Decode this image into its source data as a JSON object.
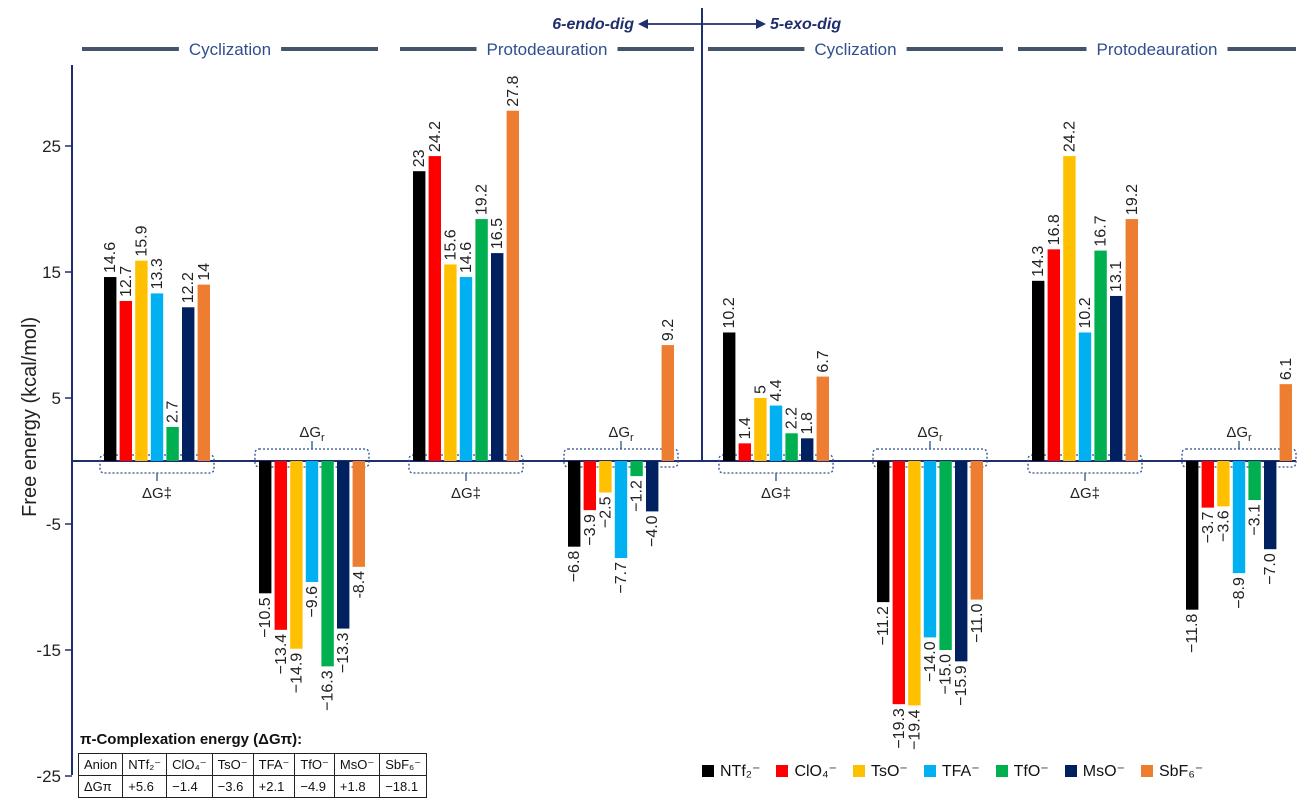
{
  "chart_data": {
    "type": "bar",
    "ylabel": "Free energy (kcal/mol)",
    "ylim": [
      -25,
      32
    ],
    "yticks": [
      25,
      15,
      5,
      -5,
      -15,
      -25
    ],
    "grid": false,
    "legend_position": "bottom-right",
    "series": [
      {
        "name": "NTf₂⁻",
        "color": "#000000"
      },
      {
        "name": "ClO₄⁻",
        "color": "#ff0000"
      },
      {
        "name": "TsO⁻",
        "color": "#ffc000"
      },
      {
        "name": "TFA⁻",
        "color": "#00b0f0"
      },
      {
        "name": "TfO⁻",
        "color": "#00b050"
      },
      {
        "name": "MsO⁻",
        "color": "#002060"
      },
      {
        "name": "SbF₆⁻",
        "color": "#ed7d31"
      }
    ],
    "groups": [
      {
        "bracket_label": "ΔG‡",
        "values": [
          14.6,
          12.7,
          15.9,
          13.3,
          2.7,
          12.2,
          14
        ],
        "labels": [
          "14.6",
          "12.7",
          "15.9",
          "13.3",
          "2.7",
          "12.2",
          "14"
        ]
      },
      {
        "bracket_label": "ΔGr",
        "values": [
          -10.5,
          -13.4,
          -14.9,
          -9.6,
          -16.3,
          -13.3,
          -8.4
        ],
        "labels": [
          "−10.5",
          "−13.4",
          "−14.9",
          "−9.6",
          "−16.3",
          "−13.3",
          "-8.4"
        ]
      },
      {
        "bracket_label": "ΔG‡",
        "values": [
          23,
          24.2,
          15.6,
          14.6,
          19.2,
          16.5,
          27.8
        ],
        "labels": [
          "23",
          "24.2",
          "15.6",
          "14.6",
          "19.2",
          "16.5",
          "27.8"
        ]
      },
      {
        "bracket_label": "ΔGr",
        "values": [
          -6.8,
          -3.9,
          -2.5,
          -7.7,
          -1.2,
          -4.0,
          9.2
        ],
        "labels": [
          "−6.8",
          "−3.9",
          "−2.5",
          "−7.7",
          "−1.2",
          "−4.0",
          "9.2"
        ]
      },
      {
        "bracket_label": "ΔG‡",
        "values": [
          10.2,
          1.4,
          5,
          4.4,
          2.2,
          1.8,
          6.7
        ],
        "labels": [
          "10.2",
          "1.4",
          "5",
          "4.4",
          "2.2",
          "1.8",
          "6.7"
        ]
      },
      {
        "bracket_label": "ΔGr",
        "values": [
          -11.2,
          -19.3,
          -19.4,
          -14.0,
          -15.0,
          -15.9,
          -11.0
        ],
        "labels": [
          "−11.2",
          "−19.3",
          "−19.4",
          "−14.0",
          "−15.0",
          "−15.9",
          "−11.0"
        ]
      },
      {
        "bracket_label": "ΔG‡",
        "values": [
          14.3,
          16.8,
          24.2,
          10.2,
          16.7,
          13.1,
          19.2
        ],
        "labels": [
          "14.3",
          "16.8",
          "24.2",
          "10.2",
          "16.7",
          "13.1",
          "19.2"
        ]
      },
      {
        "bracket_label": "ΔGr",
        "values": [
          -11.8,
          -3.7,
          -3.6,
          -8.9,
          -3.1,
          -7.0,
          6.1
        ],
        "labels": [
          "−11.8",
          "−3.7",
          "−3.6",
          "−8.9",
          "−3.1",
          "−7.0",
          "6.1"
        ]
      }
    ],
    "phase_labels": [
      "Cyclization",
      "Protodeauration",
      "Cyclization",
      "Protodeauration"
    ],
    "pathway_left": "6-endo-dig",
    "pathway_right": "5-exo-dig"
  },
  "table": {
    "title": "π-Complexation energy (ΔGπ):",
    "header": [
      "Anion",
      "NTf₂⁻",
      "ClO₄⁻",
      "TsO⁻",
      "TFA⁻",
      "TfO⁻",
      "MsO⁻",
      "SbF₆⁻"
    ],
    "row": [
      "ΔGπ",
      "+5.6",
      "−1.4",
      "−3.6",
      "+2.1",
      "−4.9",
      "+1.8",
      "−18.1"
    ]
  },
  "colors": {
    "axis": "#1f2f6e",
    "phase_line": "#44546a",
    "bracket": "#2f4f8f"
  }
}
